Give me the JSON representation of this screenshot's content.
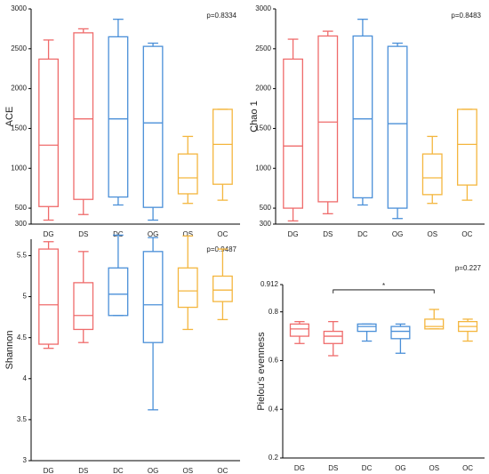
{
  "chart_data": [
    {
      "type": "box",
      "ylabel": "ACE",
      "annotation": "p=0.8334",
      "categories": [
        "DG",
        "DS",
        "DC",
        "OG",
        "OS",
        "OC"
      ],
      "colors": [
        "#ef6b6b",
        "#ef6b6b",
        "#4a8fd8",
        "#4a8fd8",
        "#f4b63e",
        "#f4b63e"
      ],
      "boxes": [
        {
          "min": 350,
          "q1": 520,
          "median": 1290,
          "q3": 2370,
          "max": 2610
        },
        {
          "min": 420,
          "q1": 610,
          "median": 1620,
          "q3": 2700,
          "max": 2750
        },
        {
          "min": 540,
          "q1": 640,
          "median": 1620,
          "q3": 2650,
          "max": 2870
        },
        {
          "min": 350,
          "q1": 510,
          "median": 1570,
          "q3": 2530,
          "max": 2570
        },
        {
          "min": 560,
          "q1": 680,
          "median": 880,
          "q3": 1180,
          "max": 1400
        },
        {
          "min": 600,
          "q1": 800,
          "median": 1300,
          "q3": 1740,
          "max": 1740
        }
      ],
      "ylim": [
        300,
        3000
      ],
      "yticks": [
        300,
        500,
        1000,
        1500,
        2000,
        2500,
        3000
      ]
    },
    {
      "type": "box",
      "ylabel": "Chao 1",
      "annotation": "p=0.8483",
      "categories": [
        "DG",
        "DS",
        "DC",
        "OG",
        "OS",
        "OC"
      ],
      "colors": [
        "#ef6b6b",
        "#ef6b6b",
        "#4a8fd8",
        "#4a8fd8",
        "#f4b63e",
        "#f4b63e"
      ],
      "boxes": [
        {
          "min": 340,
          "q1": 500,
          "median": 1280,
          "q3": 2370,
          "max": 2620
        },
        {
          "min": 430,
          "q1": 580,
          "median": 1580,
          "q3": 2660,
          "max": 2720
        },
        {
          "min": 540,
          "q1": 630,
          "median": 1620,
          "q3": 2660,
          "max": 2870
        },
        {
          "min": 370,
          "q1": 500,
          "median": 1560,
          "q3": 2530,
          "max": 2570
        },
        {
          "min": 560,
          "q1": 670,
          "median": 880,
          "q3": 1180,
          "max": 1400
        },
        {
          "min": 600,
          "q1": 790,
          "median": 1300,
          "q3": 1740,
          "max": 1740
        }
      ],
      "ylim": [
        300,
        3000
      ],
      "yticks": [
        300,
        500,
        1000,
        1500,
        2000,
        2500,
        3000
      ]
    },
    {
      "type": "box",
      "ylabel": "Shannon",
      "annotation": "p=0.9487",
      "categories": [
        "DG",
        "DS",
        "DC",
        "OG",
        "OS",
        "OC"
      ],
      "colors": [
        "#ef6b6b",
        "#ef6b6b",
        "#4a8fd8",
        "#4a8fd8",
        "#f4b63e",
        "#f4b63e"
      ],
      "boxes": [
        {
          "min": 4.37,
          "q1": 4.42,
          "median": 4.9,
          "q3": 5.58,
          "max": 5.67
        },
        {
          "min": 4.44,
          "q1": 4.6,
          "median": 4.77,
          "q3": 5.17,
          "max": 5.55
        },
        {
          "min": 4.77,
          "q1": 4.77,
          "median": 5.03,
          "q3": 5.35,
          "max": 5.75
        },
        {
          "min": 3.62,
          "q1": 4.44,
          "median": 4.9,
          "q3": 5.55,
          "max": 5.72
        },
        {
          "min": 4.6,
          "q1": 4.87,
          "median": 5.07,
          "q3": 5.35,
          "max": 5.74
        },
        {
          "min": 4.72,
          "q1": 4.94,
          "median": 5.08,
          "q3": 5.25,
          "max": 5.58
        }
      ],
      "ylim": [
        3,
        5.7
      ],
      "yticks": [
        3,
        3.5,
        4,
        4.5,
        5,
        5.5
      ]
    },
    {
      "type": "box",
      "ylabel": "Pielou's evenness",
      "annotation": "p=0.227",
      "significance": {
        "label": "*",
        "pair": [
          "DS",
          "OS"
        ]
      },
      "categories": [
        "DG",
        "DS",
        "DC",
        "OG",
        "OS",
        "OC"
      ],
      "colors": [
        "#ef6b6b",
        "#ef6b6b",
        "#4a8fd8",
        "#4a8fd8",
        "#f4b63e",
        "#f4b63e"
      ],
      "boxes": [
        {
          "min": 0.67,
          "q1": 0.7,
          "median": 0.73,
          "q3": 0.75,
          "max": 0.76
        },
        {
          "min": 0.62,
          "q1": 0.67,
          "median": 0.7,
          "q3": 0.72,
          "max": 0.76
        },
        {
          "min": 0.68,
          "q1": 0.72,
          "median": 0.74,
          "q3": 0.75,
          "max": 0.75
        },
        {
          "min": 0.63,
          "q1": 0.69,
          "median": 0.72,
          "q3": 0.74,
          "max": 0.75
        },
        {
          "min": 0.73,
          "q1": 0.73,
          "median": 0.74,
          "q3": 0.77,
          "max": 0.81
        },
        {
          "min": 0.68,
          "q1": 0.72,
          "median": 0.74,
          "q3": 0.76,
          "max": 0.77
        }
      ],
      "ylim": [
        0.2,
        0.912
      ],
      "yticks": [
        0.2,
        0.4,
        0.6,
        0.8,
        0.912
      ]
    }
  ]
}
